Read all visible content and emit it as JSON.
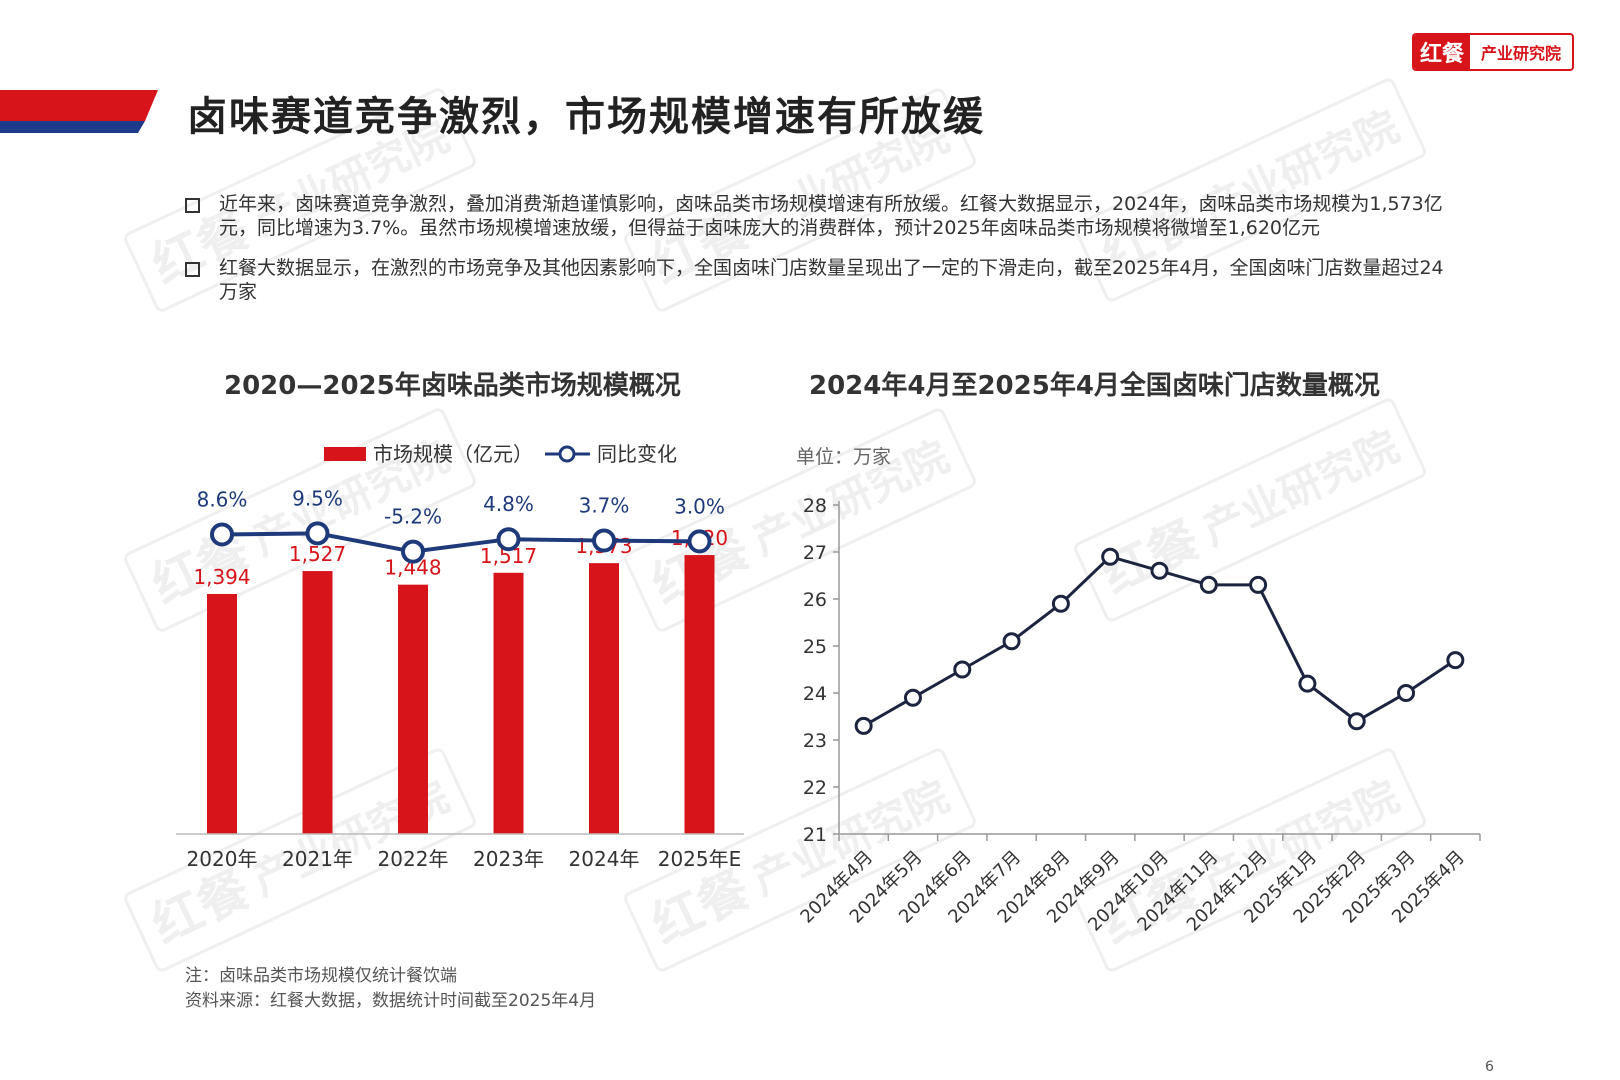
{
  "brand": {
    "mark": "红餐",
    "name": "产业研究院"
  },
  "watermark": {
    "mark": "红餐",
    "text": "产业研究院"
  },
  "page_title": "卤味赛道竞争激烈，市场规模增速有所放缓",
  "bullets": [
    "近年来，卤味赛道竞争激烈，叠加消费渐趋谨慎影响，卤味品类市场规模增速有所放缓。红餐大数据显示，2024年，卤味品类市场规模为1,573亿元，同比增速为3.7%。虽然市场规模增速放缓，但得益于卤味庞大的消费群体，预计2025年卤味品类市场规模将微增至1,620亿元",
    "红餐大数据显示，在激烈的市场竞争及其他因素影响下，全国卤味门店数量呈现出了一定的下滑走向，截至2025年4月，全国卤味门店数量超过24万家"
  ],
  "chart_data": [
    {
      "type": "bar",
      "title": "2020—2025年卤味品类市场规模概况",
      "categories": [
        "2020年",
        "2021年",
        "2022年",
        "2023年",
        "2024年",
        "2025年E"
      ],
      "series": [
        {
          "name": "市场规模（亿元）",
          "type": "bar",
          "values": [
            1394,
            1527,
            1448,
            1517,
            1573,
            1620
          ],
          "labels": [
            "1,394",
            "1,527",
            "1,448",
            "1,517",
            "1,573",
            "1,620"
          ],
          "color": "#d7141a"
        },
        {
          "name": "同比变化",
          "type": "line",
          "values": [
            8.6,
            9.5,
            -5.2,
            4.8,
            3.7,
            3.0
          ],
          "labels": [
            "8.6%",
            "9.5%",
            "-5.2%",
            "4.8%",
            "3.7%",
            "3.0%"
          ],
          "color": "#1e3a7b"
        }
      ],
      "ylim": [
        0,
        3200
      ],
      "y2lim": [
        -60,
        25
      ],
      "legend": "top",
      "grid": false
    },
    {
      "type": "line",
      "title": "2024年4月至2025年4月全国卤味门店数量概况",
      "unit": "单位：万家",
      "categories": [
        "2024年4月",
        "2024年5月",
        "2024年6月",
        "2024年7月",
        "2024年8月",
        "2024年9月",
        "2024年10月",
        "2024年11月",
        "2024年12月",
        "2025年1月",
        "2025年2月",
        "2025年3月",
        "2025年4月"
      ],
      "values": [
        23.3,
        23.9,
        24.5,
        25.1,
        25.9,
        26.9,
        26.6,
        26.3,
        26.3,
        24.2,
        23.4,
        24.0,
        24.7
      ],
      "yticks": [
        "21",
        "22",
        "23",
        "24",
        "25",
        "26",
        "27",
        "28"
      ],
      "ylim": [
        21,
        28
      ],
      "color": "#1c2440",
      "grid": false
    }
  ],
  "notes": {
    "note": "注：卤味品类市场规模仅统计餐饮端",
    "source": "资料来源：红餐大数据，数据统计时间截至2025年4月"
  },
  "page_number": "6"
}
